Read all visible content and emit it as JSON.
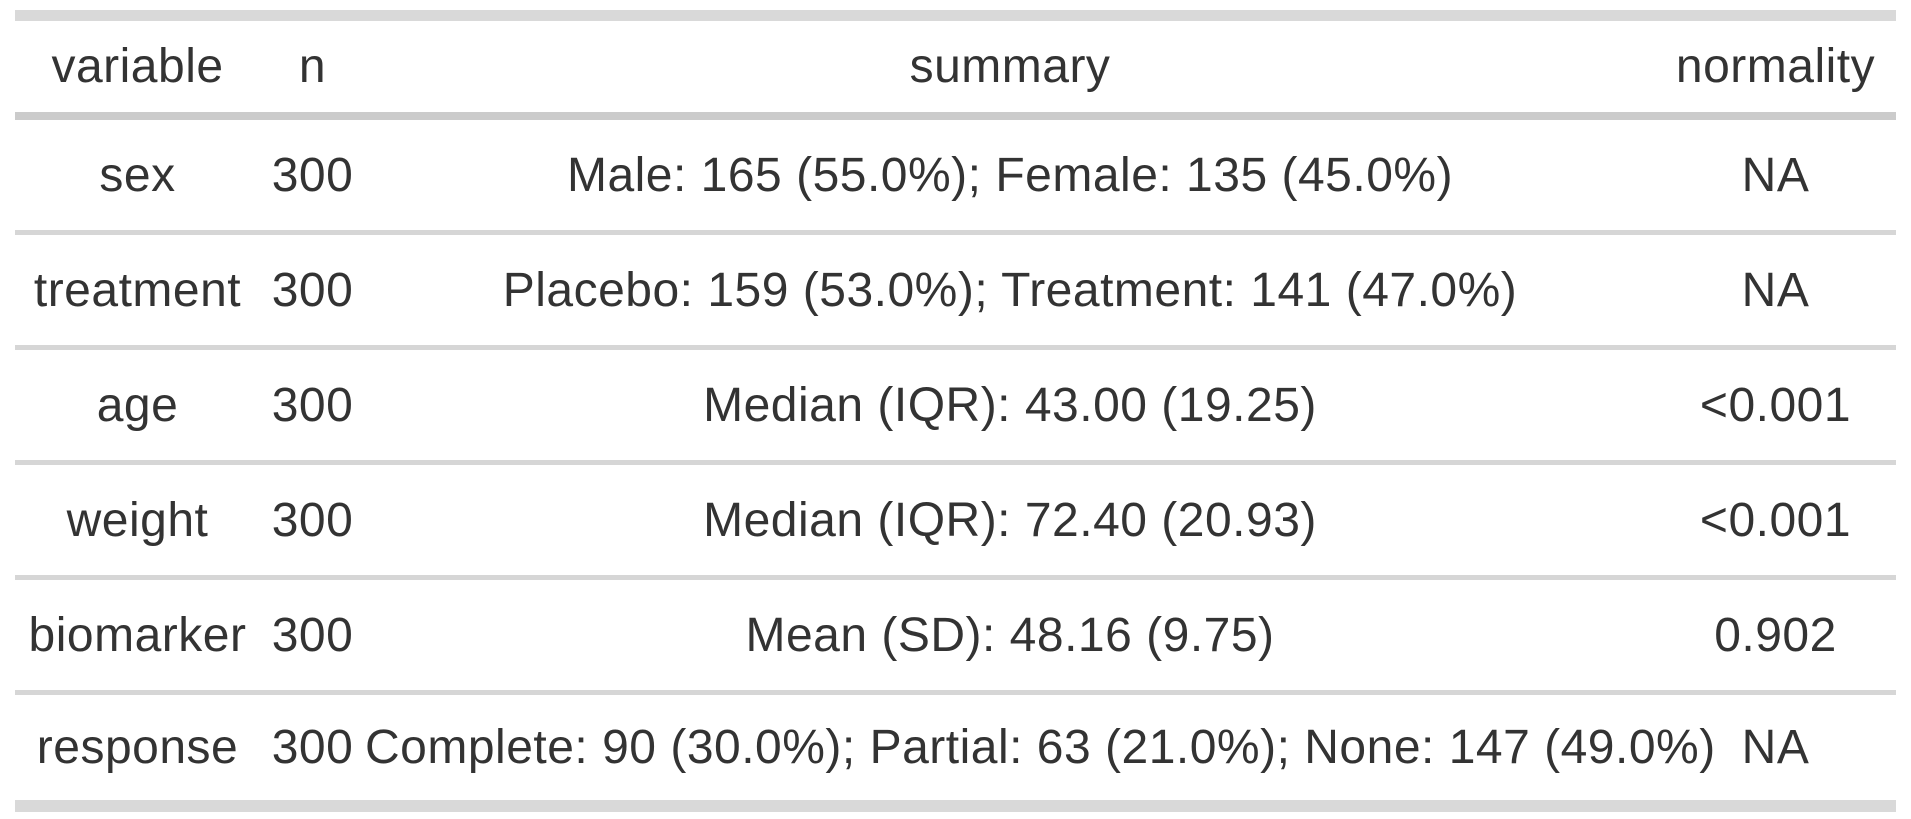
{
  "table": {
    "headers": [
      "variable",
      "n",
      "summary",
      "normality"
    ],
    "rows": [
      [
        "sex",
        "300",
        "Male: 165 (55.0%); Female: 135 (45.0%)",
        "NA"
      ],
      [
        "treatment",
        "300",
        "Placebo: 159 (53.0%); Treatment: 141 (47.0%)",
        "NA"
      ],
      [
        "age",
        "300",
        "Median (IQR): 43.00 (19.25)",
        "<0.001"
      ],
      [
        "weight",
        "300",
        "Median (IQR): 72.40 (20.93)",
        "<0.001"
      ],
      [
        "biomarker",
        "300",
        "Mean (SD): 48.16 (9.75)",
        "0.902"
      ],
      [
        "response",
        "300",
        "Complete: 90 (30.0%); Partial: 63 (21.0%); None: 147 (49.0%)",
        "NA"
      ]
    ]
  },
  "colors": {
    "text": "#333333",
    "border_thick": "#d9d9d9",
    "border_header": "#cbcbcb",
    "border_row": "#d6d6d6",
    "background": "#ffffff"
  },
  "chart_data": {
    "type": "table",
    "title": "",
    "columns": [
      "variable",
      "n",
      "summary",
      "normality"
    ],
    "rows": [
      {
        "variable": "sex",
        "n": 300,
        "summary": "Male: 165 (55.0%); Female: 135 (45.0%)",
        "normality": "NA"
      },
      {
        "variable": "treatment",
        "n": 300,
        "summary": "Placebo: 159 (53.0%); Treatment: 141 (47.0%)",
        "normality": "NA"
      },
      {
        "variable": "age",
        "n": 300,
        "summary": "Median (IQR): 43.00 (19.25)",
        "normality": "<0.001"
      },
      {
        "variable": "weight",
        "n": 300,
        "summary": "Median (IQR): 72.40 (20.93)",
        "normality": "<0.001"
      },
      {
        "variable": "biomarker",
        "n": 300,
        "summary": "Mean (SD): 48.16 (9.75)",
        "normality": "0.902"
      },
      {
        "variable": "response",
        "n": 300,
        "summary": "Complete: 90 (30.0%); Partial: 63 (21.0%); None: 147 (49.0%)",
        "normality": "NA"
      }
    ],
    "layout_hints": {
      "alignment": "all columns center-aligned",
      "grid": "horizontal rules only, thick top and bottom rules"
    }
  }
}
